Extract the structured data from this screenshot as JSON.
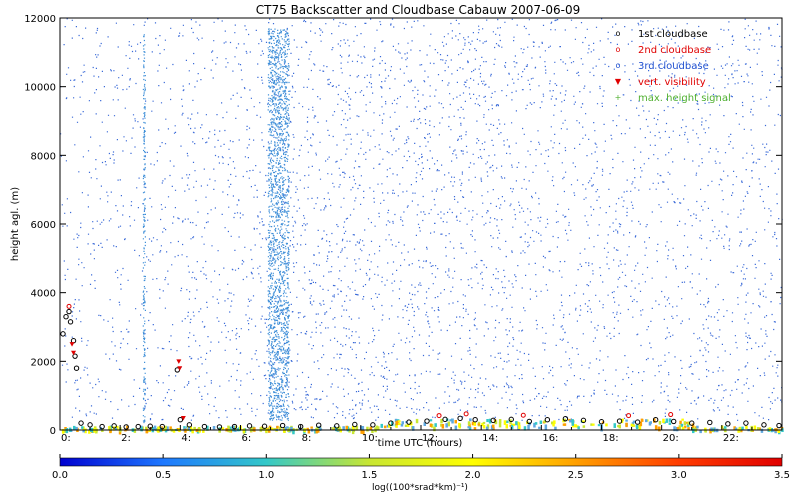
{
  "chart_data": {
    "type": "scatter",
    "title": "CT75 Backscatter and Cloudbase Cabauw 2007-06-09",
    "xlabel": "time UTC (hours)",
    "ylabel": "height agl. (m)",
    "xlim": [
      0,
      24
    ],
    "ylim": [
      0,
      12000
    ],
    "x_ticks": [
      {
        "value": 0,
        "label": "0:"
      },
      {
        "value": 2,
        "label": "2:"
      },
      {
        "value": 4,
        "label": "4:"
      },
      {
        "value": 6,
        "label": "6:"
      },
      {
        "value": 8,
        "label": "8:"
      },
      {
        "value": 10,
        "label": "10:"
      },
      {
        "value": 12,
        "label": "12:"
      },
      {
        "value": 14,
        "label": "14:"
      },
      {
        "value": 16,
        "label": "16:"
      },
      {
        "value": 18,
        "label": "18:"
      },
      {
        "value": 20,
        "label": "20:"
      },
      {
        "value": 22,
        "label": "22:"
      }
    ],
    "y_ticks": [
      {
        "value": 0,
        "label": "0"
      },
      {
        "value": 2000,
        "label": "2000"
      },
      {
        "value": 4000,
        "label": "4000"
      },
      {
        "value": 6000,
        "label": "6000"
      },
      {
        "value": 8000,
        "label": "8000"
      },
      {
        "value": 10000,
        "label": "10000"
      },
      {
        "value": 12000,
        "label": "12000"
      }
    ],
    "legend_position": "top-right",
    "legend": [
      {
        "symbol": "o",
        "label": "1st cloudbase",
        "color": "#000000"
      },
      {
        "symbol": "o",
        "label": "2nd cloudbase",
        "color": "#e00000"
      },
      {
        "symbol": "o",
        "label": "3rd cloudbase",
        "color": "#2050d0"
      },
      {
        "symbol": "▼",
        "label": "vert. visibility",
        "color": "#e00000"
      },
      {
        "symbol": "+",
        "label": "max. height signal",
        "color": "#50b030"
      }
    ],
    "colorbar": {
      "label": "log((100*srad*km)⁻¹)",
      "range": [
        0.0,
        3.5
      ],
      "tick_labels": [
        "0.0",
        "0.5",
        "1.0",
        "1.5",
        "2.0",
        "2.5",
        "3.0",
        "3.5"
      ],
      "colors": [
        "#0000d0",
        "#1e78ff",
        "#33c8c8",
        "#c8e632",
        "#ffff00",
        "#ffa000",
        "#ff3c00",
        "#e00000"
      ]
    },
    "cloudbase_1st": [
      {
        "x": 0.1,
        "y": 2800
      },
      {
        "x": 0.2,
        "y": 3300
      },
      {
        "x": 0.3,
        "y": 3450
      },
      {
        "x": 0.35,
        "y": 3150
      },
      {
        "x": 0.45,
        "y": 2600
      },
      {
        "x": 0.5,
        "y": 2150
      },
      {
        "x": 0.55,
        "y": 1800
      },
      {
        "x": 0.7,
        "y": 200
      },
      {
        "x": 1.0,
        "y": 150
      },
      {
        "x": 1.4,
        "y": 100
      },
      {
        "x": 1.8,
        "y": 120
      },
      {
        "x": 2.2,
        "y": 90
      },
      {
        "x": 2.6,
        "y": 100
      },
      {
        "x": 3.0,
        "y": 110
      },
      {
        "x": 3.4,
        "y": 100
      },
      {
        "x": 3.9,
        "y": 1750
      },
      {
        "x": 4.0,
        "y": 300
      },
      {
        "x": 4.3,
        "y": 150
      },
      {
        "x": 4.8,
        "y": 100
      },
      {
        "x": 5.3,
        "y": 90
      },
      {
        "x": 5.8,
        "y": 100
      },
      {
        "x": 6.3,
        "y": 120
      },
      {
        "x": 6.8,
        "y": 110
      },
      {
        "x": 7.4,
        "y": 130
      },
      {
        "x": 8.0,
        "y": 100
      },
      {
        "x": 8.6,
        "y": 140
      },
      {
        "x": 9.2,
        "y": 120
      },
      {
        "x": 9.8,
        "y": 160
      },
      {
        "x": 10.4,
        "y": 150
      },
      {
        "x": 11.0,
        "y": 200
      },
      {
        "x": 11.6,
        "y": 230
      },
      {
        "x": 12.2,
        "y": 260
      },
      {
        "x": 12.8,
        "y": 310
      },
      {
        "x": 13.3,
        "y": 340
      },
      {
        "x": 13.8,
        "y": 300
      },
      {
        "x": 14.4,
        "y": 280
      },
      {
        "x": 15.0,
        "y": 310
      },
      {
        "x": 15.6,
        "y": 250
      },
      {
        "x": 16.2,
        "y": 300
      },
      {
        "x": 16.8,
        "y": 330
      },
      {
        "x": 17.4,
        "y": 280
      },
      {
        "x": 18.0,
        "y": 240
      },
      {
        "x": 18.6,
        "y": 260
      },
      {
        "x": 19.2,
        "y": 230
      },
      {
        "x": 19.8,
        "y": 300
      },
      {
        "x": 20.4,
        "y": 250
      },
      {
        "x": 21.0,
        "y": 200
      },
      {
        "x": 21.6,
        "y": 220
      },
      {
        "x": 22.2,
        "y": 180
      },
      {
        "x": 22.8,
        "y": 200
      },
      {
        "x": 23.4,
        "y": 150
      },
      {
        "x": 23.9,
        "y": 130
      }
    ],
    "cloudbase_2nd": [
      {
        "x": 0.3,
        "y": 3600
      },
      {
        "x": 12.6,
        "y": 420
      },
      {
        "x": 13.5,
        "y": 470
      },
      {
        "x": 15.4,
        "y": 430
      },
      {
        "x": 18.9,
        "y": 420
      },
      {
        "x": 20.3,
        "y": 450
      }
    ],
    "vert_visibility": [
      {
        "x": 0.4,
        "y": 2500
      },
      {
        "x": 0.45,
        "y": 2250
      },
      {
        "x": 3.95,
        "y": 2000
      },
      {
        "x": 3.98,
        "y": 1800
      },
      {
        "x": 4.1,
        "y": 350
      }
    ],
    "backscatter_bands": [
      {
        "x0": 6.9,
        "x1": 7.6,
        "y0": 300,
        "y1": 11700,
        "note": "dense noise column"
      },
      {
        "x0": 2.75,
        "x1": 2.82,
        "y0": 200,
        "y1": 11600,
        "note": "thin noise streak"
      }
    ]
  }
}
